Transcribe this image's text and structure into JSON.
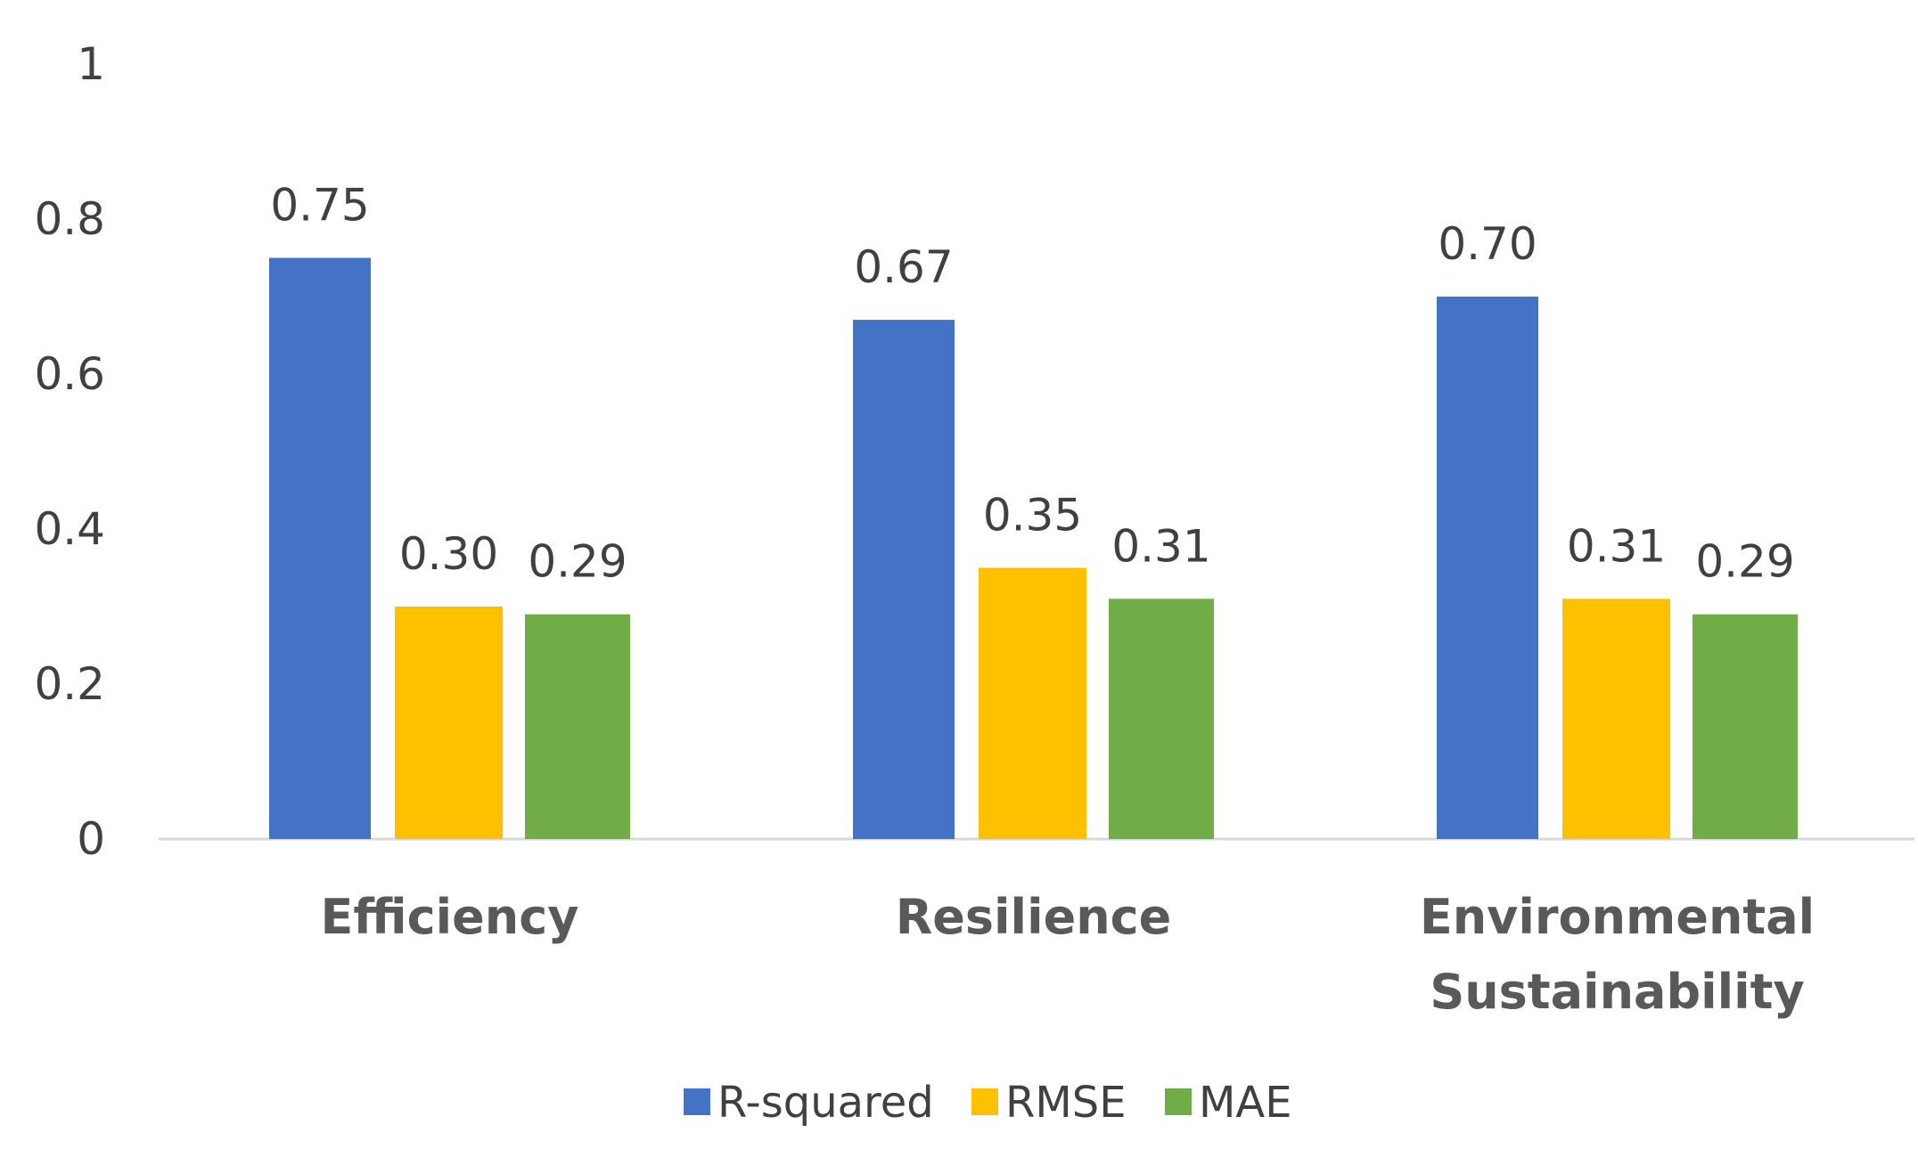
{
  "chart_data": {
    "type": "bar",
    "title": "",
    "xlabel": "",
    "ylabel": "",
    "categories": [
      [
        "Efficiency"
      ],
      [
        "Resilience"
      ],
      [
        "Environmental",
        "Sustainability"
      ]
    ],
    "series": [
      {
        "name": "R-squared",
        "color": "#4472C4",
        "values": [
          0.75,
          0.67,
          0.7
        ],
        "labels": [
          "0.75",
          "0.67",
          "0.70"
        ]
      },
      {
        "name": "RMSE",
        "color": "#FFC000",
        "values": [
          0.3,
          0.35,
          0.31
        ],
        "labels": [
          "0.30",
          "0.35",
          "0.31"
        ]
      },
      {
        "name": "MAE",
        "color": "#70AD47",
        "values": [
          0.29,
          0.31,
          0.29
        ],
        "labels": [
          "0.29",
          "0.31",
          "0.29"
        ]
      }
    ],
    "ylim": [
      0,
      1
    ],
    "yticks": [
      0,
      0.2,
      0.4,
      0.6,
      0.8,
      1
    ],
    "ytick_labels": [
      "0",
      "0.2",
      "0.4",
      "0.6",
      "0.8",
      "1"
    ],
    "grid": false,
    "legend_position": "bottom"
  }
}
